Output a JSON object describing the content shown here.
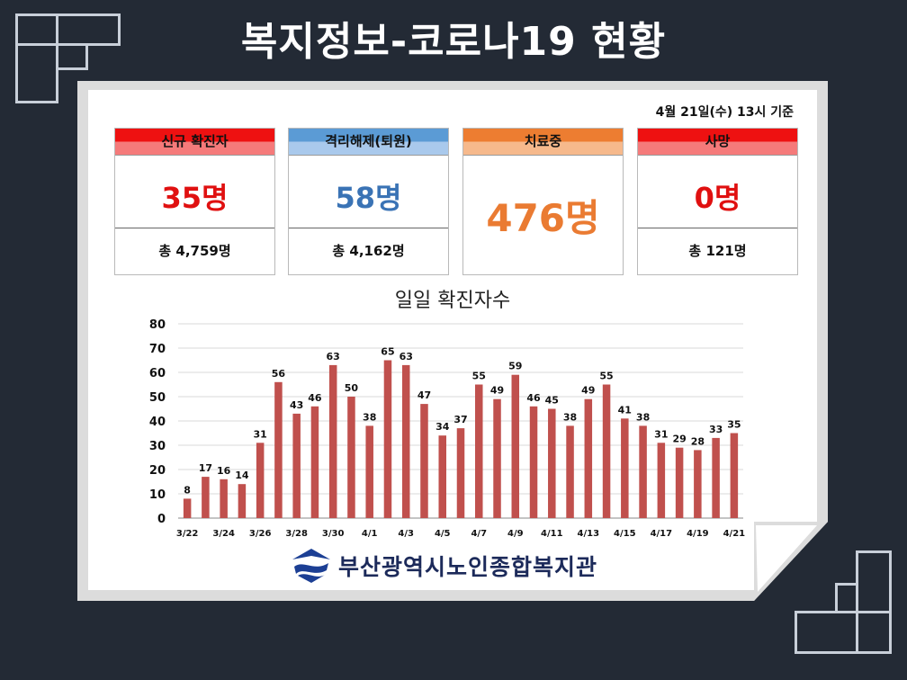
{
  "header": {
    "title": "복지정보-코로나19 현황"
  },
  "basis": "4월 21일(수) 13시 기준",
  "cards": [
    {
      "label": "신규 확진자",
      "value": "35명",
      "total": "총 4,759명",
      "color": "#e01010",
      "head_top": "#ee1111",
      "head_bottom": "#f57a7a"
    },
    {
      "label": "격리해제(퇴원)",
      "value": "58명",
      "total": "총 4,162명",
      "color": "#3a73b5",
      "head_top": "#5b9bd5",
      "head_bottom": "#a9c9ec"
    },
    {
      "label": "치료중",
      "value": "476명",
      "total": "",
      "color": "#ea7b32",
      "head_top": "#ed7d31",
      "head_bottom": "#f6b98c"
    },
    {
      "label": "사망",
      "value": "0명",
      "total": "총 121명",
      "color": "#e01010",
      "head_top": "#ee1111",
      "head_bottom": "#f57a7a"
    }
  ],
  "footer": {
    "org": "부산광역시노인종합복지관"
  },
  "chart_data": {
    "type": "bar",
    "title": "일일 확진자수",
    "x": [
      "3/22",
      "3/23",
      "3/24",
      "3/25",
      "3/26",
      "3/27",
      "3/28",
      "3/29",
      "3/30",
      "3/31",
      "4/1",
      "4/2",
      "4/3",
      "4/4",
      "4/5",
      "4/6",
      "4/7",
      "4/8",
      "4/9",
      "4/10",
      "4/11",
      "4/12",
      "4/13",
      "4/14",
      "4/15",
      "4/16",
      "4/17",
      "4/18",
      "4/19",
      "4/20",
      "4/21"
    ],
    "values": [
      8,
      17,
      16,
      14,
      31,
      56,
      43,
      46,
      63,
      50,
      38,
      65,
      63,
      47,
      34,
      37,
      55,
      49,
      59,
      46,
      45,
      38,
      49,
      55,
      41,
      38,
      31,
      29,
      28,
      33,
      35
    ],
    "tick_labels": [
      "3/22",
      "3/24",
      "3/26",
      "3/28",
      "3/30",
      "4/1",
      "4/3",
      "4/5",
      "4/7",
      "4/9",
      "4/11",
      "4/13",
      "4/15",
      "4/17",
      "4/19",
      "4/21"
    ],
    "ylim": [
      0,
      80
    ],
    "yticks": [
      0,
      10,
      20,
      30,
      40,
      50,
      60,
      70,
      80
    ],
    "bar_color": "#c0504d",
    "grid": true
  }
}
